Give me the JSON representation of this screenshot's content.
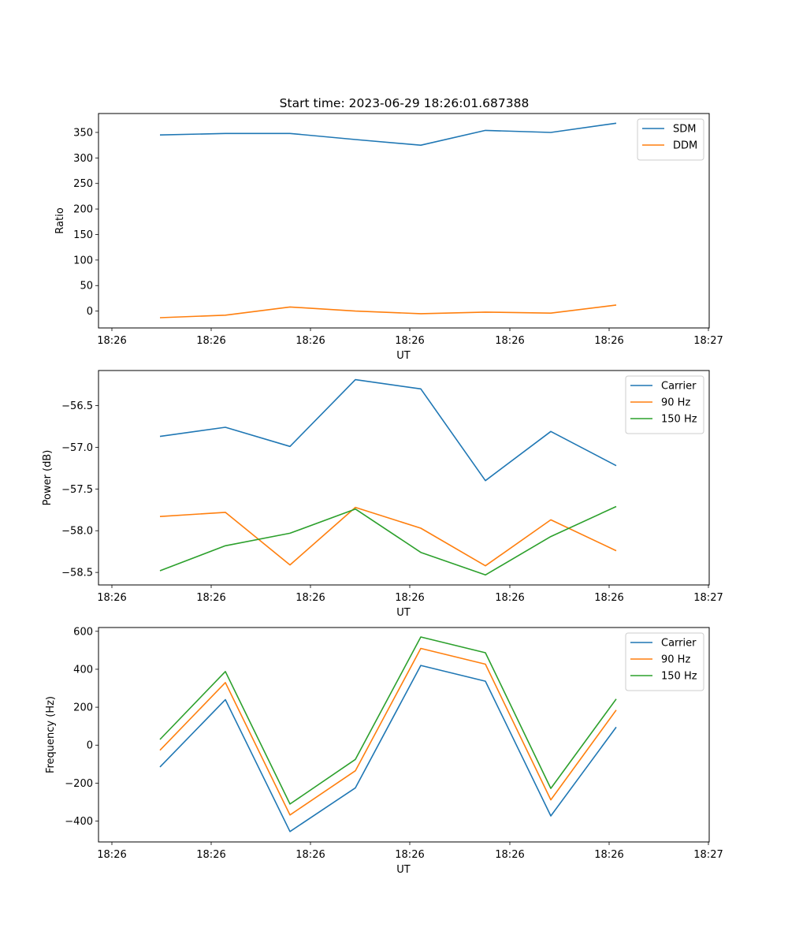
{
  "chart_data": {
    "title": "Start time: 2023-06-29 18:26:01.687388",
    "panels": [
      {
        "type": "line",
        "xlabel": "UT",
        "ylabel": "Ratio",
        "xticks": [
          "18:26",
          "18:26",
          "18:26",
          "18:26",
          "18:26",
          "18:26",
          "18:27"
        ],
        "ylim": [
          -33,
          387
        ],
        "yticks": [
          0,
          50,
          100,
          150,
          200,
          250,
          300,
          350
        ],
        "yticklabels": [
          "0",
          "50",
          "100",
          "150",
          "200",
          "250",
          "300",
          "350"
        ],
        "legend_position": "top-right",
        "series": [
          {
            "name": "SDM",
            "color": "#1f77b4",
            "values": [
              345,
              348,
              348,
              336,
              325,
              354,
              350,
              368
            ]
          },
          {
            "name": "DDM",
            "color": "#ff7f0e",
            "values": [
              -13,
              -8,
              8,
              0,
              -5,
              -2,
              -4,
              12
            ]
          }
        ]
      },
      {
        "type": "line",
        "xlabel": "UT",
        "ylabel": "Power (dB)",
        "xticks": [
          "18:26",
          "18:26",
          "18:26",
          "18:26",
          "18:26",
          "18:26",
          "18:27"
        ],
        "ylim": [
          -58.65,
          -56.08
        ],
        "yticks": [
          -58.5,
          -58.0,
          -57.5,
          -57.0,
          -56.5
        ],
        "yticklabels": [
          "−58.5",
          "−58.0",
          "−57.5",
          "−57.0",
          "−56.5"
        ],
        "legend_position": "top-right",
        "series": [
          {
            "name": "Carrier",
            "color": "#1f77b4",
            "values": [
              -56.87,
              -56.76,
              -56.99,
              -56.19,
              -56.3,
              -57.4,
              -56.81,
              -57.22
            ]
          },
          {
            "name": "90 Hz",
            "color": "#ff7f0e",
            "values": [
              -57.83,
              -57.78,
              -58.41,
              -57.72,
              -57.97,
              -58.42,
              -57.87,
              -58.24
            ]
          },
          {
            "name": "150 Hz",
            "color": "#2ca02c",
            "values": [
              -58.48,
              -58.18,
              -58.03,
              -57.74,
              -58.26,
              -58.53,
              -58.07,
              -57.71
            ]
          }
        ]
      },
      {
        "type": "line",
        "xlabel": "UT",
        "ylabel": "Frequency (Hz)",
        "xticks": [
          "18:26",
          "18:26",
          "18:26",
          "18:26",
          "18:26",
          "18:26",
          "18:27"
        ],
        "ylim": [
          -510,
          620
        ],
        "yticks": [
          -400,
          -200,
          0,
          200,
          400,
          600
        ],
        "yticklabels": [
          "−400",
          "−200",
          "0",
          "200",
          "400",
          "600"
        ],
        "legend_position": "top-right",
        "series": [
          {
            "name": "Carrier",
            "color": "#1f77b4",
            "values": [
              -115,
              240,
              -455,
              -225,
              420,
              337,
              -373,
              95
            ]
          },
          {
            "name": "90 Hz",
            "color": "#ff7f0e",
            "values": [
              -27,
              330,
              -368,
              -135,
              510,
              427,
              -288,
              185
            ]
          },
          {
            "name": "150 Hz",
            "color": "#2ca02c",
            "values": [
              30,
              388,
              -310,
              -75,
              570,
              487,
              -228,
              243
            ]
          }
        ]
      }
    ]
  }
}
